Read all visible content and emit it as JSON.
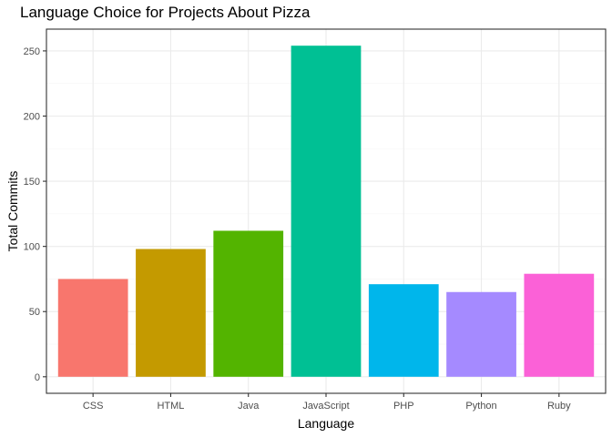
{
  "chart_data": {
    "type": "bar",
    "title": "Language Choice for Projects About Pizza",
    "xlabel": "Language",
    "ylabel": "Total Commits",
    "categories": [
      "CSS",
      "HTML",
      "Java",
      "JavaScript",
      "PHP",
      "Python",
      "Ruby"
    ],
    "values": [
      75,
      98,
      112,
      254,
      71,
      65,
      79
    ],
    "colors": [
      "#F8766D",
      "#C49A00",
      "#53B400",
      "#00C094",
      "#00B6EB",
      "#A58AFF",
      "#FB61D7"
    ],
    "yticks": [
      0,
      50,
      100,
      150,
      200,
      250
    ],
    "ylim": [
      -12.7,
      266.7
    ],
    "grid": true,
    "legend": "none",
    "theme_colors": {
      "panel_border": "#333333",
      "grid_major": "#ebebeb",
      "grid_minor": "#f5f5f5"
    }
  }
}
